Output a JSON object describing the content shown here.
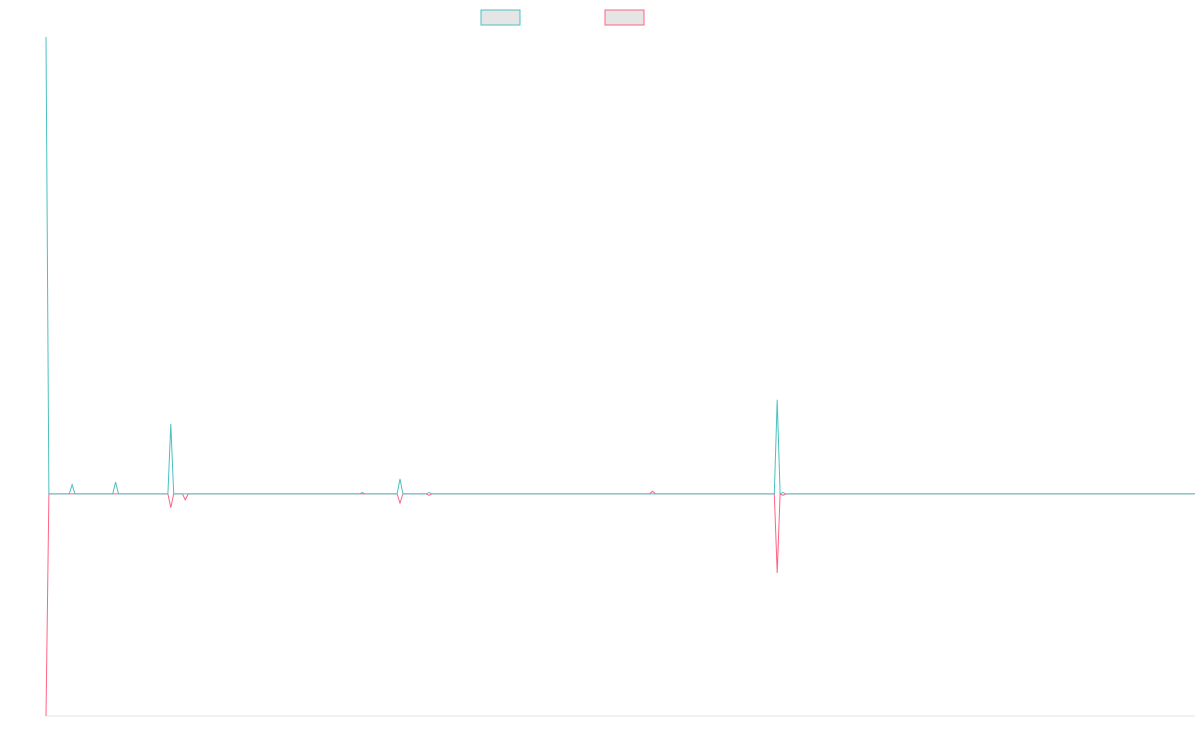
{
  "chart_data": {
    "type": "line",
    "title": "",
    "xlabel": "",
    "ylabel": "",
    "x_count": 397,
    "xlim": [
      0,
      396
    ],
    "ylim": [
      -48.6,
      100
    ],
    "grid": false,
    "legend_placement": "top-center",
    "series": [
      {
        "name": "",
        "color": "#4bc0c0",
        "nonzero_points": [
          [
            0,
            100
          ],
          [
            9,
            2
          ],
          [
            24,
            2.6
          ],
          [
            43,
            15.3
          ],
          [
            109,
            0.3
          ],
          [
            122,
            3.3
          ],
          [
            132,
            0.3
          ],
          [
            254,
            0.3
          ],
          [
            252,
            20.6
          ]
        ]
      },
      {
        "name": "",
        "color": "#ff6384",
        "nonzero_points": [
          [
            0,
            -48.6
          ],
          [
            43,
            -3
          ],
          [
            48,
            -1.3
          ],
          [
            122,
            -2
          ],
          [
            132,
            -0.3
          ],
          [
            209,
            0.6
          ],
          [
            252,
            -17.3
          ],
          [
            254,
            -0.3
          ]
        ]
      }
    ]
  }
}
